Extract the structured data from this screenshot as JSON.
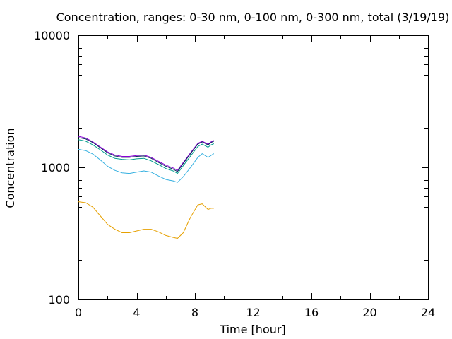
{
  "chart_data": {
    "type": "line",
    "title": "Concentration, ranges: 0-30 nm, 0-100 nm, 0-300 nm, total (3/19/19)",
    "xlabel": "Time [hour]",
    "ylabel": "Concentration",
    "xlim": [
      0,
      24
    ],
    "ylim": [
      100,
      10000
    ],
    "yscale": "log",
    "grid": false,
    "x_ticks": [
      "0",
      "4",
      "8",
      "12",
      "16",
      "20",
      "24"
    ],
    "y_ticks": [
      "100",
      "1000",
      "10000"
    ],
    "colors": {
      "series_total": "#8b00d6",
      "series_300": "#0b2a5a",
      "series_100": "#009e8c",
      "series_30b": "#35b0e0",
      "series_30": "#e6a000"
    },
    "series": [
      {
        "x": [
          0,
          0.5,
          1,
          1.5,
          2,
          2.5,
          3,
          3.5,
          4,
          4.5,
          5,
          5.5,
          6,
          6.5,
          6.8,
          7.2,
          7.7,
          8.2,
          8.5,
          8.9,
          9.1,
          9.3
        ],
        "values": [
          1720,
          1670,
          1560,
          1430,
          1310,
          1240,
          1210,
          1210,
          1230,
          1240,
          1190,
          1110,
          1040,
          990,
          950,
          1090,
          1290,
          1520,
          1580,
          1500,
          1560,
          1600
        ]
      },
      {
        "x": [
          0,
          0.5,
          1,
          1.5,
          2,
          2.5,
          3,
          3.5,
          4,
          4.5,
          5,
          5.5,
          6,
          6.5,
          6.8,
          7.2,
          7.7,
          8.2,
          8.5,
          8.9,
          9.1,
          9.3
        ],
        "values": [
          1680,
          1640,
          1540,
          1410,
          1290,
          1220,
          1190,
          1190,
          1210,
          1220,
          1170,
          1090,
          1020,
          970,
          930,
          1070,
          1270,
          1500,
          1560,
          1480,
          1540,
          1580
        ]
      },
      {
        "x": [
          0,
          0.5,
          1,
          1.5,
          2,
          2.5,
          3,
          3.5,
          4,
          4.5,
          5,
          5.5,
          6,
          6.5,
          6.8,
          7.2,
          7.7,
          8.2,
          8.5,
          8.9,
          9.1,
          9.3
        ],
        "values": [
          1620,
          1580,
          1480,
          1360,
          1240,
          1170,
          1150,
          1140,
          1160,
          1170,
          1120,
          1050,
          980,
          940,
          900,
          1030,
          1220,
          1440,
          1500,
          1420,
          1480,
          1510
        ]
      },
      {
        "x": [
          0,
          0.5,
          1,
          1.5,
          2,
          2.5,
          3,
          3.5,
          4,
          4.5,
          5,
          5.5,
          6,
          6.5,
          6.8,
          7.2,
          7.7,
          8.2,
          8.5,
          8.9,
          9.1,
          9.3
        ],
        "values": [
          1370,
          1340,
          1260,
          1140,
          1020,
          950,
          910,
          900,
          920,
          940,
          920,
          860,
          810,
          790,
          770,
          850,
          1000,
          1190,
          1270,
          1190,
          1230,
          1270
        ]
      },
      {
        "x": [
          0,
          0.5,
          1,
          1.5,
          2,
          2.5,
          3,
          3.5,
          4,
          4.5,
          5,
          5.5,
          6,
          6.5,
          6.8,
          7.2,
          7.7,
          8.2,
          8.5,
          8.9,
          9.1,
          9.3
        ],
        "values": [
          550,
          540,
          500,
          430,
          370,
          340,
          320,
          320,
          330,
          340,
          340,
          325,
          305,
          295,
          290,
          320,
          420,
          520,
          530,
          480,
          490,
          490
        ]
      }
    ]
  }
}
